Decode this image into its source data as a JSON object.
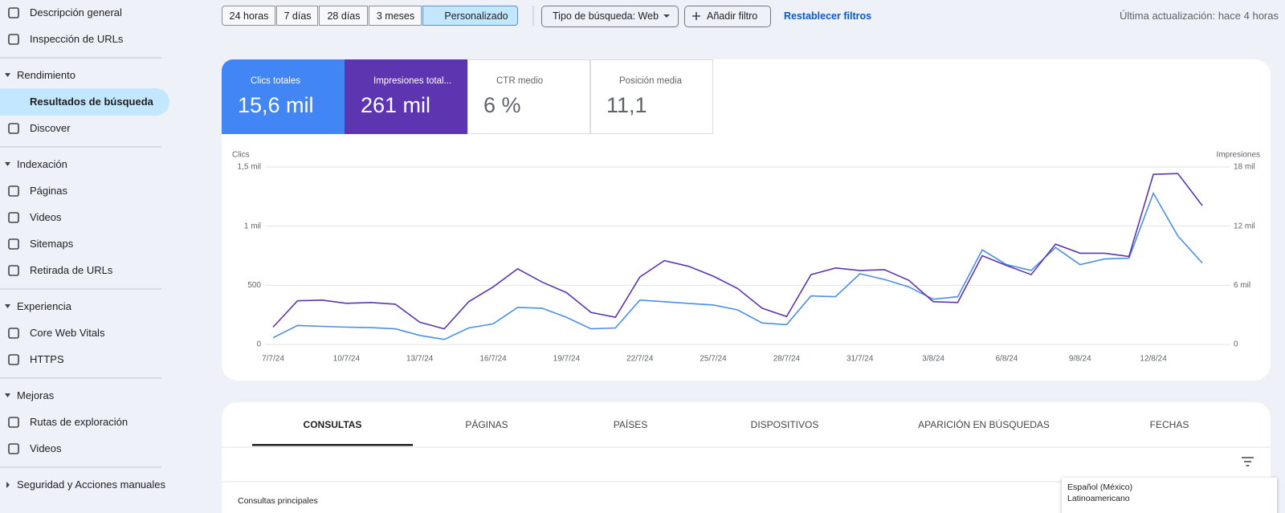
{
  "nav": {
    "top": [
      "Descripción general",
      "Inspección de URLs"
    ],
    "sections": [
      {
        "title": "Rendimiento",
        "items": [
          "Resultados de búsqueda",
          "Discover"
        ]
      },
      {
        "title": "Indexación",
        "items": [
          "Páginas",
          "Videos",
          "Sitemaps",
          "Retirada de URLs"
        ]
      },
      {
        "title": "Experiencia",
        "items": [
          "Core Web Vitals",
          "HTTPS"
        ]
      },
      {
        "title": "Mejoras",
        "items": [
          "Rutas de exploración",
          "Videos"
        ]
      },
      {
        "title": "Seguridad y Acciones manuales",
        "items": []
      }
    ],
    "selected_item": [
      0,
      0
    ]
  },
  "toolbar": {
    "ranges": [
      "24 horas",
      "7 días",
      "28 días",
      "3 meses",
      "Personalizado"
    ],
    "selected_range": 4,
    "search_type": "Tipo de búsqueda: Web",
    "add_filter": "Añadir filtro",
    "reset": "Restablecer filtros",
    "last_update": "Última actualización: hace 4 horas"
  },
  "metrics": [
    {
      "label": "Clics totales",
      "value": "15,6 mil",
      "checked": true,
      "color": "#4285f4"
    },
    {
      "label": "Impresiones total...",
      "value": "261 mil",
      "checked": true,
      "color": "#5e35b1"
    },
    {
      "label": "CTR medio",
      "value": "6 %",
      "checked": false,
      "color": "#ffffff"
    },
    {
      "label": "Posición media",
      "value": "11,1",
      "checked": false,
      "color": "#ffffff"
    }
  ],
  "chart_data": {
    "type": "line",
    "y_label": "Clics",
    "y2_label": "Impresiones",
    "categories": [
      "7/7/24",
      null,
      null,
      "10/7/24",
      null,
      null,
      "13/7/24",
      null,
      null,
      "16/7/24",
      null,
      null,
      "19/7/24",
      null,
      null,
      "22/7/24",
      null,
      null,
      "25/7/24",
      null,
      null,
      "28/7/24",
      null,
      null,
      "31/7/24",
      null,
      null,
      "3/8/24",
      null,
      null,
      "6/8/24",
      null,
      null,
      "9/8/24",
      null,
      null,
      "12/8/24",
      null,
      null
    ],
    "series": [
      {
        "name": "Clics",
        "color": "#4a8fe7",
        "values": [
          56,
          160,
          153,
          146,
          142,
          132,
          76,
          42,
          139,
          174,
          313,
          306,
          229,
          132,
          139,
          375,
          361,
          347,
          333,
          292,
          181,
          167,
          410,
          403,
          597,
          549,
          486,
          382,
          403,
          799,
          674,
          625,
          819,
          674,
          722,
          729,
          1278,
          917,
          688
        ]
      },
      {
        "name": "Impresiones",
        "color": "#5e35b1",
        "axis": "y2",
        "values": [
          1750,
          4420,
          4500,
          4170,
          4250,
          4080,
          2250,
          1580,
          4330,
          5830,
          7670,
          6330,
          5250,
          3250,
          2750,
          6830,
          8500,
          7920,
          6920,
          5670,
          3670,
          2830,
          7080,
          7750,
          7500,
          7580,
          6500,
          4330,
          4250,
          9000,
          8000,
          7080,
          10170,
          9250,
          9250,
          8920,
          17250,
          17330,
          14080
        ]
      }
    ],
    "ylim": [
      0,
      1500
    ],
    "yticks": [
      0,
      500,
      {
        "value": 1000,
        "label": "1 mil"
      },
      {
        "value": 1500,
        "label": "1,5 mil"
      }
    ],
    "y2lim": [
      0,
      18000
    ],
    "y2ticks": [
      0,
      {
        "value": 6000,
        "label": "6 mil"
      },
      {
        "value": 12000,
        "label": "12 mil"
      },
      {
        "value": 18000,
        "label": "18 mil"
      }
    ],
    "grid": true
  },
  "tabs": [
    "CONSULTAS",
    "PÁGINAS",
    "PAÍSES",
    "DISPOSITIVOS",
    "APARICIÓN EN BÚSQUEDAS",
    "FECHAS"
  ],
  "selected_tab": 0,
  "table": {
    "title": "Consultas principales"
  },
  "popup": [
    "Español (México)",
    "Latinoamericano"
  ]
}
